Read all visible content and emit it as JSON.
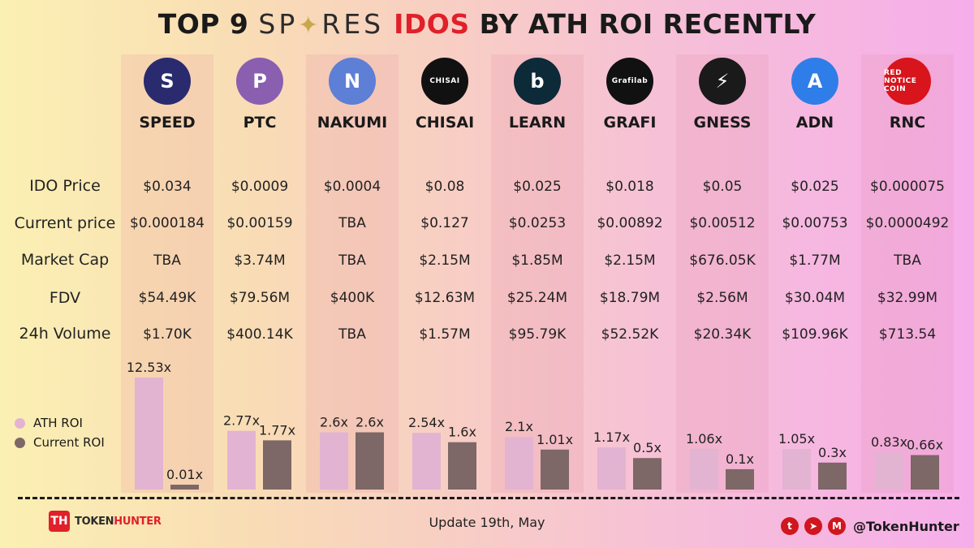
{
  "title": {
    "prefix": "TOP 9",
    "brand": "SP✦RES",
    "highlight": "IDOS",
    "suffix": "BY ATH ROI RECENTLY"
  },
  "row_labels": [
    "IDO Price",
    "Current price",
    "Market Cap",
    "FDV",
    "24h  Volume"
  ],
  "tokens": [
    {
      "name": "SPEED",
      "logo_text": "S",
      "logo_color": "#2a2b6e",
      "ido_price": "$0.034",
      "current_price": "$0.000184",
      "market_cap": "TBA",
      "fdv": "$54.49K",
      "volume": "$1.70K",
      "ath_label": "12.53x",
      "current_label": "0.01x"
    },
    {
      "name": "PTC",
      "logo_text": "P",
      "logo_color": "#8a5fb0",
      "ido_price": "$0.0009",
      "current_price": "$0.00159",
      "market_cap": "$3.74M",
      "fdv": "$79.56M",
      "volume": "$400.14K",
      "ath_label": "2.77x",
      "current_label": "1.77x"
    },
    {
      "name": "NAKUMI",
      "logo_text": "N",
      "logo_color": "#5d7fd6",
      "ido_price": "$0.0004",
      "current_price": "TBA",
      "market_cap": "TBA",
      "fdv": "$400K",
      "volume": "TBA",
      "ath_label": "2.6x",
      "current_label": "2.6x"
    },
    {
      "name": "CHISAI",
      "logo_text": "CHISAI",
      "logo_color": "#111111",
      "ido_price": "$0.08",
      "current_price": "$0.127",
      "market_cap": "$2.15M",
      "fdv": "$12.63M",
      "volume": "$1.57M",
      "ath_label": "2.54x",
      "current_label": "1.6x"
    },
    {
      "name": "LEARN",
      "logo_text": "b",
      "logo_color": "#0d2a38",
      "ido_price": "$0.025",
      "current_price": "$0.0253",
      "market_cap": "$1.85M",
      "fdv": "$25.24M",
      "volume": "$95.79K",
      "ath_label": "2.1x",
      "current_label": "1.01x"
    },
    {
      "name": "GRAFI",
      "logo_text": "Grafilab",
      "logo_color": "#111111",
      "ido_price": "$0.018",
      "current_price": "$0.00892",
      "market_cap": "$2.15M",
      "fdv": "$18.79M",
      "volume": "$52.52K",
      "ath_label": "1.17x",
      "current_label": "0.5x"
    },
    {
      "name": "GNESS",
      "logo_text": "⚡",
      "logo_color": "#1a1a1a",
      "ido_price": "$0.05",
      "current_price": "$0.00512",
      "market_cap": "$676.05K",
      "fdv": "$2.56M",
      "volume": "$20.34K",
      "ath_label": "1.06x",
      "current_label": "0.1x"
    },
    {
      "name": "ADN",
      "logo_text": "A",
      "logo_color": "#2f7de8",
      "ido_price": "$0.025",
      "current_price": "$0.00753",
      "market_cap": "$1.77M",
      "fdv": "$30.04M",
      "volume": "$109.96K",
      "ath_label": "1.05x",
      "current_label": "0.3x"
    },
    {
      "name": "RNC",
      "logo_text": "RED NOTICE COIN",
      "logo_color": "#d8141c",
      "ido_price": "$0.000075",
      "current_price": "$0.0000492",
      "market_cap": "TBA",
      "fdv": "$32.99M",
      "volume": "$713.54",
      "ath_label": "0.83x",
      "current_label": "0.66x"
    }
  ],
  "chart_data": {
    "type": "bar",
    "categories": [
      "SPEED",
      "PTC",
      "NAKUMI",
      "CHISAI",
      "LEARN",
      "GRAFI",
      "GNESS",
      "ADN",
      "RNC"
    ],
    "series": [
      {
        "name": "ATH ROI",
        "values": [
          12.53,
          2.77,
          2.6,
          2.54,
          2.1,
          1.17,
          1.06,
          1.05,
          0.83
        ],
        "color": "#e3b3d2"
      },
      {
        "name": "Current  ROI",
        "values": [
          0.01,
          1.77,
          2.6,
          1.6,
          1.01,
          0.5,
          0.1,
          0.3,
          0.66
        ],
        "color": "#7d6767"
      }
    ],
    "legend_position": "left"
  },
  "footer": {
    "brand_mark": "TH",
    "brand_name_a": "TOKEN",
    "brand_name_b": "HUNTER",
    "update": "Update 19th, May",
    "socials": [
      {
        "icon": "twitter-icon",
        "glyph": "t"
      },
      {
        "icon": "telegram-icon",
        "glyph": "➤"
      },
      {
        "icon": "medium-icon",
        "glyph": "M"
      }
    ],
    "handle": "@TokenHunter"
  },
  "colors": {
    "accent": "#e0202a",
    "ath_bar": "#e3b3d2",
    "current_bar": "#7d6767"
  }
}
